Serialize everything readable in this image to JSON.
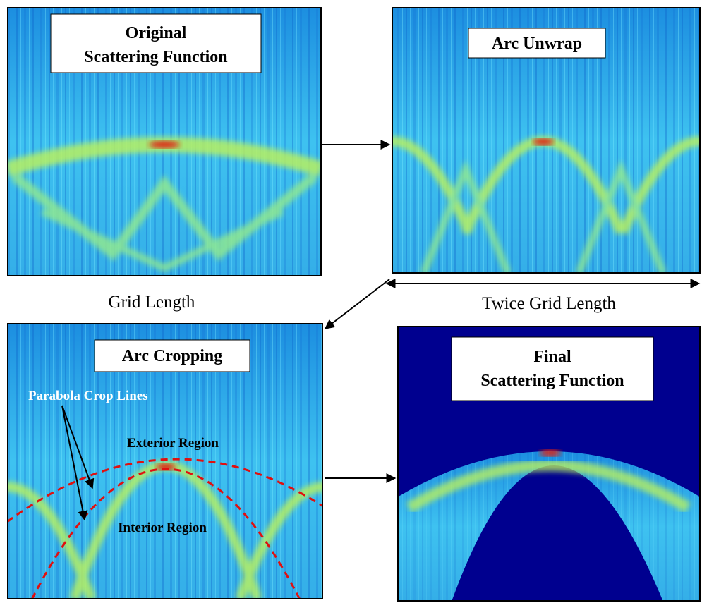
{
  "panels": [
    {
      "title_lines": [
        "Original",
        "Scattering Function"
      ],
      "caption": "Grid Length"
    },
    {
      "title_lines": [
        "Arc Unwrap"
      ],
      "caption": "Twice Grid Length"
    },
    {
      "title_lines": [
        "Arc Cropping"
      ],
      "annotations": [
        "Parabola Crop Lines",
        "Exterior Region",
        "Interior Region"
      ]
    },
    {
      "title_lines": [
        "Final",
        "Scattering Function"
      ]
    }
  ]
}
